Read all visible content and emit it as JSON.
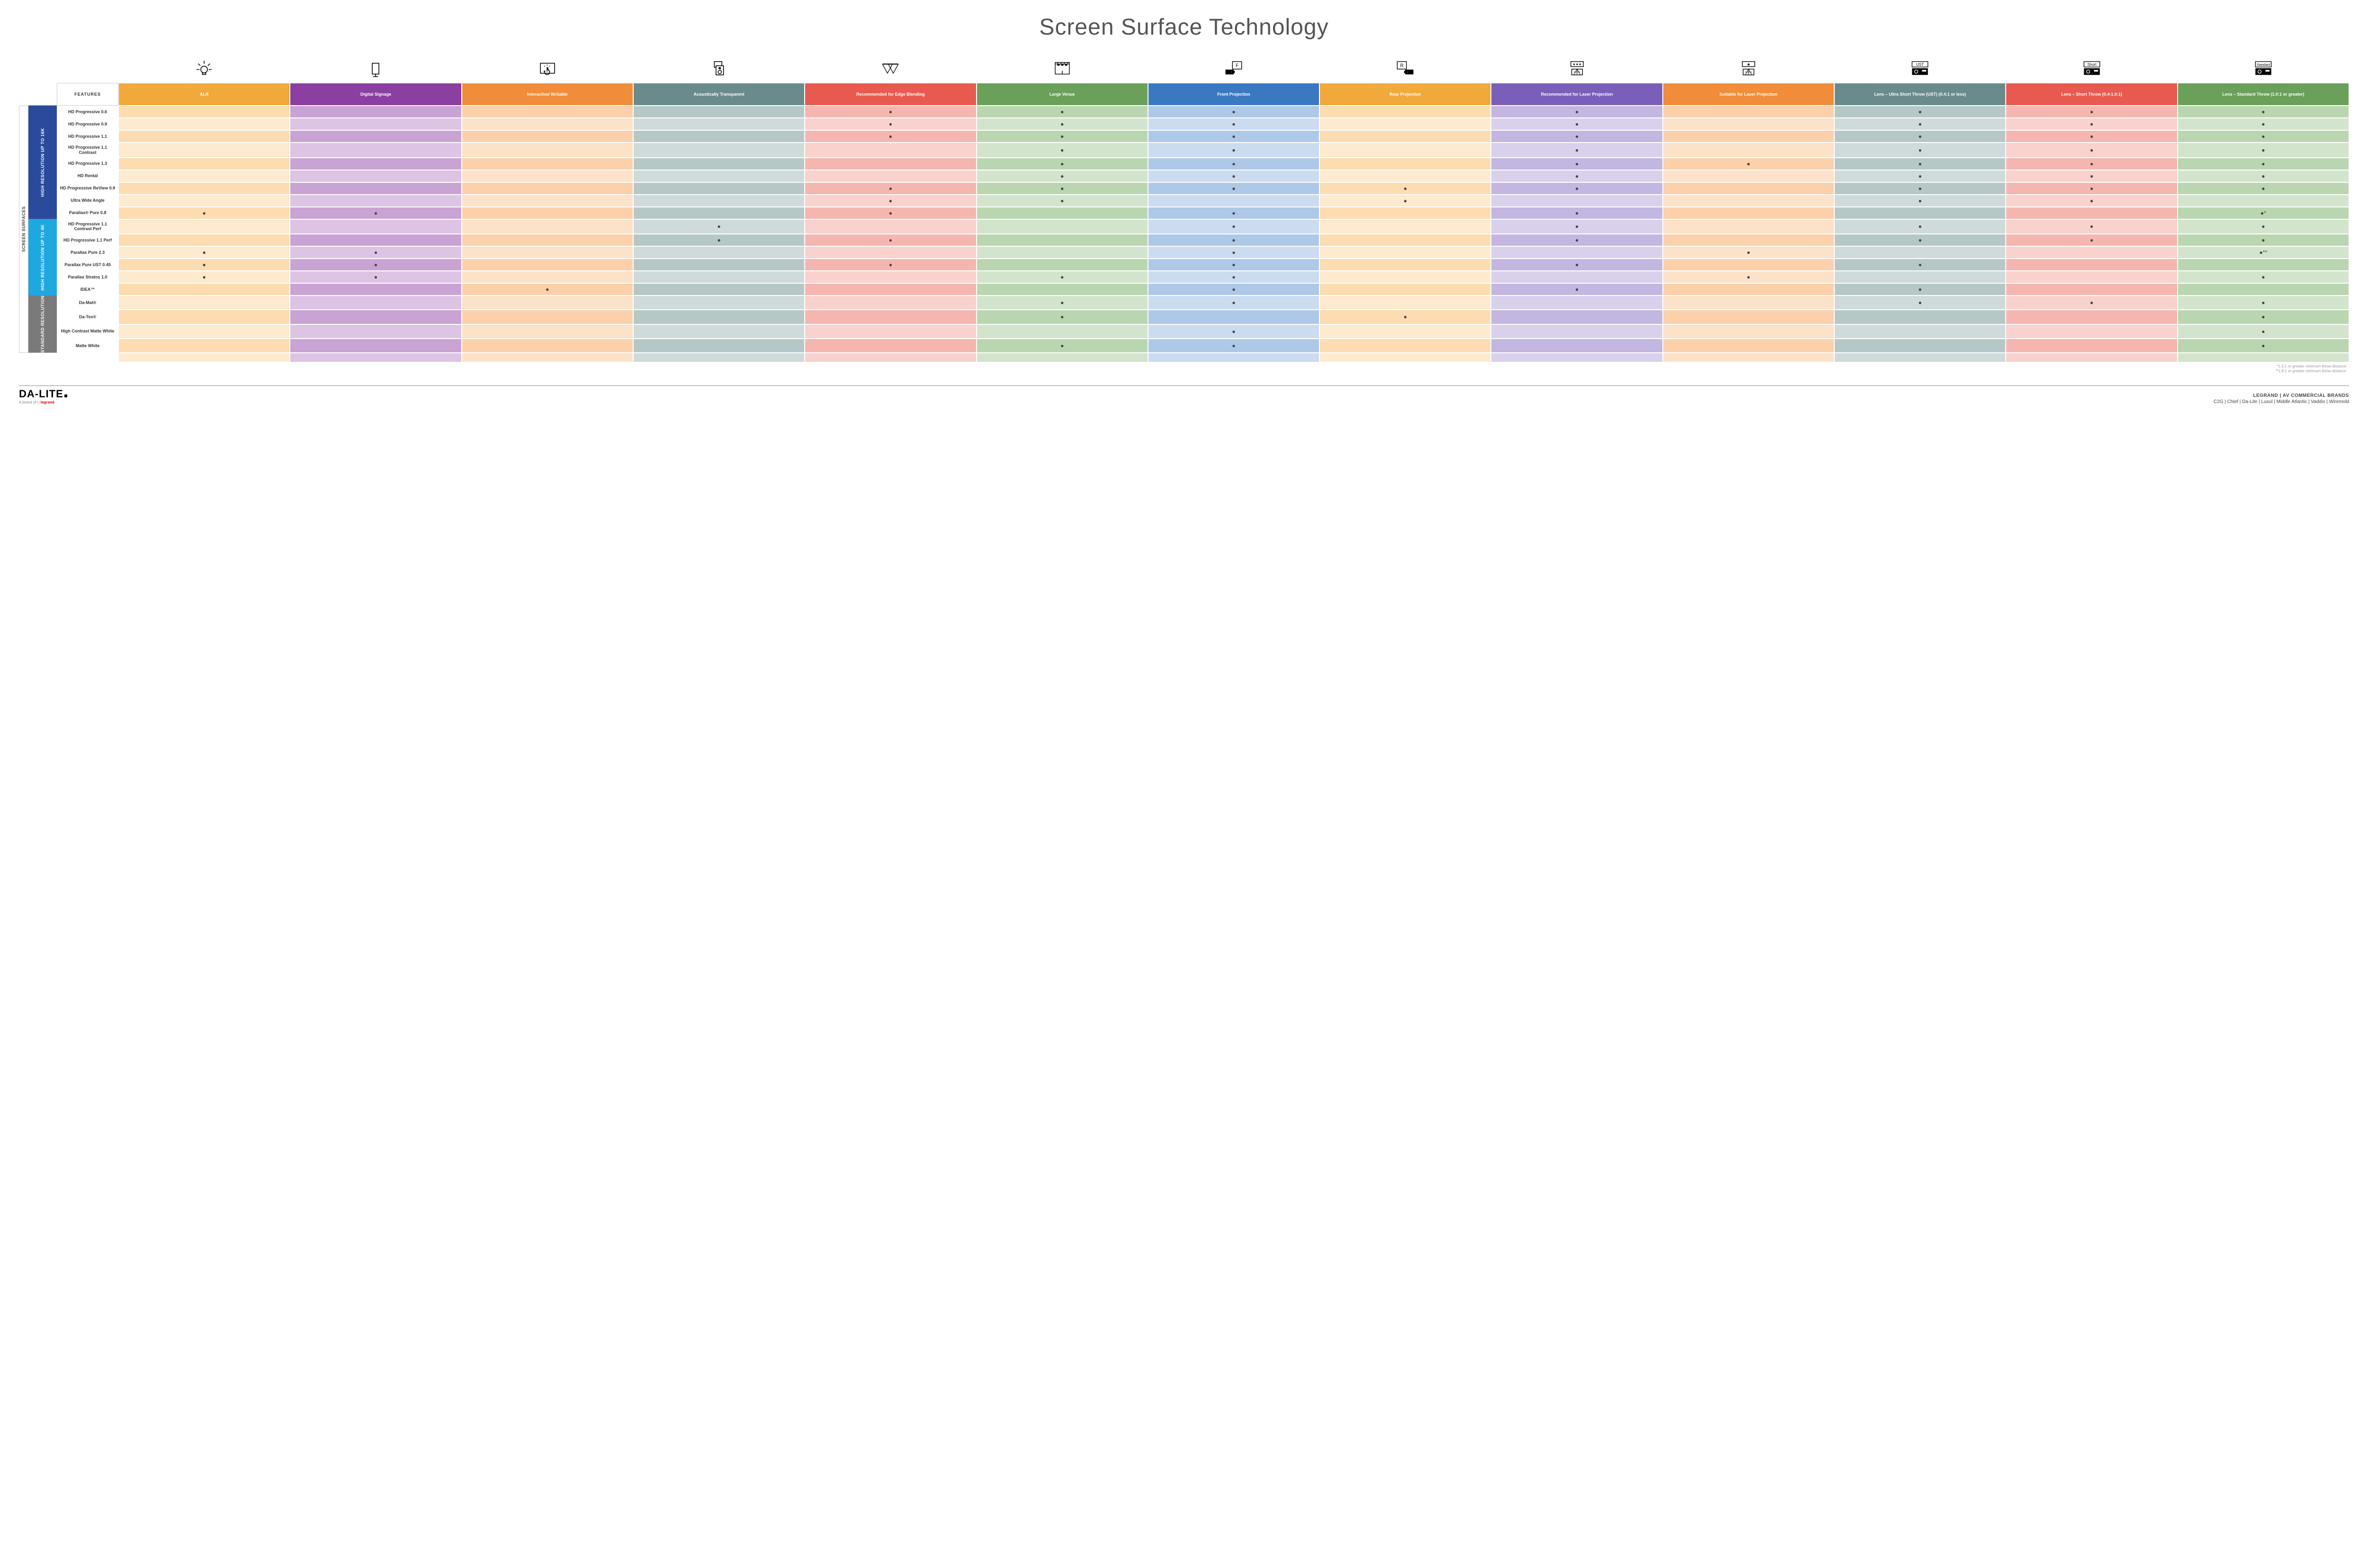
{
  "title": "Screen Surface Technology",
  "featuresHeader": "FEATURES",
  "outerLabel": "SCREEN SURFACES",
  "columns": [
    {
      "label": "ALR",
      "hdr": "#f0a93a",
      "a": "#fcdcb0",
      "b": "#fdeacf"
    },
    {
      "label": "Digital Signage",
      "hdr": "#8b3fa0",
      "a": "#c9a3d4",
      "b": "#ddc3e4"
    },
    {
      "label": "Interactive/ Writable",
      "hdr": "#f08c3a",
      "a": "#fbd0ab",
      "b": "#fce2c9"
    },
    {
      "label": "Acoustically Transparent",
      "hdr": "#6a8b8b",
      "a": "#b6c7c7",
      "b": "#cfdada"
    },
    {
      "label": "Recommended for Edge Blending",
      "hdr": "#e85a4f",
      "a": "#f5b6b0",
      "b": "#f9d1cd"
    },
    {
      "label": "Large Venue",
      "hdr": "#6aa05a",
      "a": "#bad6b0",
      "b": "#d3e4cc"
    },
    {
      "label": "Front Projection",
      "hdr": "#3a78c2",
      "a": "#aec8e8",
      "b": "#cbdbf0"
    },
    {
      "label": "Rear Projection",
      "hdr": "#f0a93a",
      "a": "#fcdcb0",
      "b": "#fdeacf"
    },
    {
      "label": "Recommended for Laser Projection",
      "hdr": "#7a5fba",
      "a": "#c3b6e0",
      "b": "#d9d0ec"
    },
    {
      "label": "Suitable for Laser Projection",
      "hdr": "#f08c3a",
      "a": "#fbd0ab",
      "b": "#fce2c9"
    },
    {
      "label": "Lens – Ultra Short Throw (UST) (0.4:1 or less)",
      "hdr": "#6a8b8b",
      "a": "#b6c7c7",
      "b": "#cfdada"
    },
    {
      "label": "Lens – Short Throw (0.4-1.0:1)",
      "hdr": "#e85a4f",
      "a": "#f5b6b0",
      "b": "#f9d1cd"
    },
    {
      "label": "Lens – Standard Throw (1.0:1 or greater)",
      "hdr": "#6aa05a",
      "a": "#bad6b0",
      "b": "#d3e4cc"
    }
  ],
  "groups": [
    {
      "label": "HIGH RESOLUTION UP TO 16K",
      "color": "#2a4b9b",
      "rows": [
        {
          "label": "HD Progressive 0.6",
          "dots": [
            0,
            0,
            0,
            0,
            1,
            1,
            1,
            0,
            1,
            0,
            1,
            1,
            1
          ]
        },
        {
          "label": "HD Progressive 0.9",
          "dots": [
            0,
            0,
            0,
            0,
            1,
            1,
            1,
            0,
            1,
            0,
            1,
            1,
            1
          ]
        },
        {
          "label": "HD Progressive 1.1",
          "dots": [
            0,
            0,
            0,
            0,
            1,
            1,
            1,
            0,
            1,
            0,
            1,
            1,
            1
          ]
        },
        {
          "label": "HD Progressive 1.1 Contrast",
          "dots": [
            0,
            0,
            0,
            0,
            0,
            1,
            1,
            0,
            1,
            0,
            1,
            1,
            1
          ]
        },
        {
          "label": "HD Progressive 1.3",
          "dots": [
            0,
            0,
            0,
            0,
            0,
            1,
            1,
            0,
            1,
            1,
            1,
            1,
            1
          ]
        },
        {
          "label": "HD Rental",
          "dots": [
            0,
            0,
            0,
            0,
            0,
            1,
            1,
            0,
            1,
            0,
            1,
            1,
            1
          ]
        },
        {
          "label": "HD Progressive ReView 0.9",
          "dots": [
            0,
            0,
            0,
            0,
            1,
            1,
            1,
            1,
            1,
            0,
            1,
            1,
            1
          ]
        },
        {
          "label": "Ultra Wide Angle",
          "dots": [
            0,
            0,
            0,
            0,
            1,
            1,
            0,
            1,
            0,
            0,
            1,
            1,
            0
          ]
        },
        {
          "label": "Parallax® Pure 0.8",
          "dots": [
            1,
            1,
            0,
            0,
            1,
            0,
            1,
            0,
            1,
            0,
            0,
            0,
            "●*"
          ]
        }
      ]
    },
    {
      "label": "HIGH RESOLUTION UP TO 4K",
      "color": "#1fa8e0",
      "rows": [
        {
          "label": "HD Progressive 1.1 Contrast Perf",
          "dots": [
            0,
            0,
            0,
            1,
            0,
            0,
            1,
            0,
            1,
            0,
            1,
            1,
            1
          ]
        },
        {
          "label": "HD Progressive 1.1 Perf",
          "dots": [
            0,
            0,
            0,
            1,
            1,
            0,
            1,
            0,
            1,
            0,
            1,
            1,
            1
          ]
        },
        {
          "label": "Parallax Pure 2.3",
          "dots": [
            1,
            1,
            0,
            0,
            0,
            0,
            1,
            0,
            0,
            1,
            0,
            0,
            "●**"
          ]
        },
        {
          "label": "Parallax Pure UST 0.45",
          "dots": [
            1,
            1,
            0,
            0,
            1,
            0,
            1,
            0,
            1,
            0,
            1,
            0,
            0
          ]
        },
        {
          "label": "Parallax Stratos 1.0",
          "dots": [
            1,
            1,
            0,
            0,
            0,
            1,
            1,
            0,
            0,
            1,
            0,
            0,
            1
          ]
        },
        {
          "label": "IDEA™",
          "dots": [
            0,
            0,
            1,
            0,
            0,
            0,
            1,
            0,
            1,
            0,
            1,
            0,
            0
          ]
        }
      ]
    },
    {
      "label": "STANDARD RESOLUTION",
      "color": "#7a7a7a",
      "rows": [
        {
          "label": "Da-Mat®",
          "dots": [
            0,
            0,
            0,
            0,
            0,
            1,
            1,
            0,
            0,
            0,
            1,
            1,
            1
          ]
        },
        {
          "label": "Da-Tex®",
          "dots": [
            0,
            0,
            0,
            0,
            0,
            1,
            0,
            1,
            0,
            0,
            0,
            0,
            1
          ]
        },
        {
          "label": "High Contrast Matte White",
          "dots": [
            0,
            0,
            0,
            0,
            0,
            0,
            1,
            0,
            0,
            0,
            0,
            0,
            1
          ]
        },
        {
          "label": "Matte White",
          "dots": [
            0,
            0,
            0,
            0,
            0,
            1,
            1,
            0,
            0,
            0,
            0,
            0,
            1
          ]
        }
      ]
    }
  ],
  "footnotes": [
    "*1.5:1 or greater minimum throw distance",
    "**1.8:1 or greater minimum throw distance"
  ],
  "footer": {
    "logo": "DA-LITE",
    "logoSub1": "A brand of ",
    "logoSub2": "legrand",
    "brandsTitle": "LEGRAND | AV COMMERCIAL BRANDS",
    "brandsList": "C2G  |  Chief  |  Da-Lite  |  Luxul  |  Middle Atlantic  |  Vaddio  |  Wiremold"
  },
  "projLabels": {
    "ust": "UST",
    "short": "Short",
    "std": "Standard"
  }
}
